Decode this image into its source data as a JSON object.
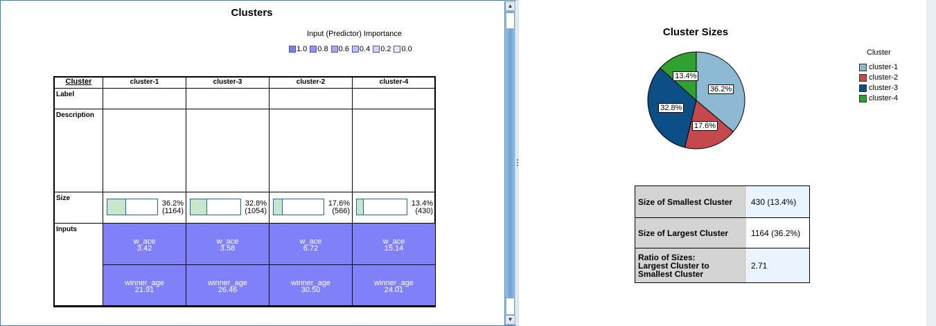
{
  "left": {
    "title": "Clusters",
    "legend_title": "Input (Predictor) Importance",
    "legend": [
      {
        "label": "1.0",
        "color": "#7d7df5"
      },
      {
        "label": "0.8",
        "color": "#9393f5"
      },
      {
        "label": "0.6",
        "color": "#a8a8f6"
      },
      {
        "label": "0.4",
        "color": "#bdbdf8"
      },
      {
        "label": "0.2",
        "color": "#d3d3fa"
      },
      {
        "label": "0.0",
        "color": "#eaeafd"
      }
    ],
    "table": {
      "header": "Cluster",
      "columns": [
        "cluster-1",
        "cluster-3",
        "cluster-2",
        "cluster-4"
      ],
      "row_labels": {
        "label": "Label",
        "description": "Description",
        "size": "Size",
        "inputs": "Inputs"
      },
      "sizes": [
        {
          "pct": "36.2%",
          "count": "(1164)",
          "fraction": 0.362
        },
        {
          "pct": "32.8%",
          "count": "(1054)",
          "fraction": 0.328
        },
        {
          "pct": "17.6%",
          "count": "(566)",
          "fraction": 0.176
        },
        {
          "pct": "13.4%",
          "count": "(430)",
          "fraction": 0.134
        }
      ],
      "inputs": [
        {
          "name": "w_ace",
          "values": [
            "3.42",
            "3.58",
            "6.72",
            "15.14"
          ]
        },
        {
          "name": "winner_age",
          "values": [
            "21.91",
            "26.46",
            "30.50",
            "24.01"
          ]
        }
      ]
    }
  },
  "right": {
    "title": "Cluster Sizes",
    "legend_title": "Cluster",
    "legend": [
      {
        "label": "cluster-1",
        "color": "#8cb8d2"
      },
      {
        "label": "cluster-2",
        "color": "#c5484d"
      },
      {
        "label": "cluster-3",
        "color": "#0b4f86"
      },
      {
        "label": "cluster-4",
        "color": "#2ea12e"
      }
    ],
    "pie_labels": {
      "cluster-1": "36.2%",
      "cluster-2": "17.6%",
      "cluster-3": "32.8%",
      "cluster-4": "13.4%"
    },
    "summary": [
      {
        "label": "Size of Smallest Cluster",
        "value": "430 (13.4%)"
      },
      {
        "label": "Size of Largest Cluster",
        "value": "1164 (36.2%)"
      },
      {
        "label": "Ratio of Sizes:\nLargest Cluster to\nSmallest Cluster",
        "value": "2.71"
      }
    ]
  },
  "chart_data": {
    "type": "pie",
    "title": "Cluster Sizes",
    "categories": [
      "cluster-1",
      "cluster-2",
      "cluster-3",
      "cluster-4"
    ],
    "values": [
      36.2,
      17.6,
      32.8,
      13.4
    ],
    "legend": "right"
  }
}
